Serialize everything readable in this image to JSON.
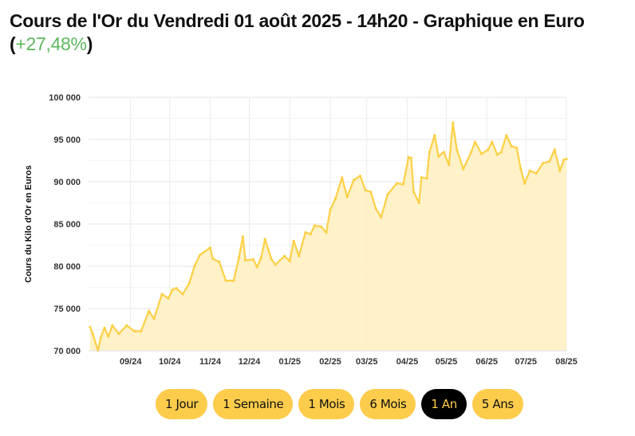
{
  "header": {
    "title": "Cours de l'Or du Vendredi 01 août 2025 - 14h20 - Graphique en Euro",
    "change_open": "(",
    "change": "+27,48%",
    "change_close": ")"
  },
  "colors": {
    "line": "#fdd045",
    "fill": "#fff0c2",
    "change": "#5cb85c",
    "button": "#fdcc4b",
    "active_button": "#000000"
  },
  "range_buttons": [
    {
      "label": "1 Jour",
      "active": false
    },
    {
      "label": "1 Semaine",
      "active": false
    },
    {
      "label": "1 Mois",
      "active": false
    },
    {
      "label": "6 Mois",
      "active": false
    },
    {
      "label": "1 An",
      "active": true
    },
    {
      "label": "5 Ans",
      "active": false
    }
  ],
  "chart_data": {
    "type": "area",
    "title": "",
    "xlabel": "",
    "ylabel": "Cours du Kilo d'Or en Euros",
    "ylim": [
      70000,
      100000
    ],
    "xlim": [
      "2024-08-01",
      "2025-08-01"
    ],
    "grid": true,
    "yticks": [
      70000,
      75000,
      80000,
      85000,
      90000,
      95000,
      100000
    ],
    "ytick_labels": [
      "70 000",
      "75 000",
      "80 000",
      "85 000",
      "90 000",
      "95 000",
      "100 000"
    ],
    "xticks": [
      "2024-09-01",
      "2024-10-01",
      "2024-11-01",
      "2024-12-01",
      "2025-01-01",
      "2025-02-01",
      "2025-03-01",
      "2025-04-01",
      "2025-05-01",
      "2025-06-01",
      "2025-07-01",
      "2025-08-01"
    ],
    "xtick_labels": [
      "09/24",
      "10/24",
      "11/24",
      "12/24",
      "01/25",
      "02/25",
      "03/25",
      "04/25",
      "05/25",
      "06/25",
      "07/25",
      "08/25"
    ],
    "x": [
      "2024-08-01",
      "2024-08-03",
      "2024-08-07",
      "2024-08-09",
      "2024-08-12",
      "2024-08-15",
      "2024-08-18",
      "2024-08-23",
      "2024-08-29",
      "2024-09-04",
      "2024-09-09",
      "2024-09-15",
      "2024-09-19",
      "2024-09-25",
      "2024-09-30",
      "2024-10-03",
      "2024-10-06",
      "2024-10-11",
      "2024-10-16",
      "2024-10-20",
      "2024-10-24",
      "2024-11-01",
      "2024-11-03",
      "2024-11-08",
      "2024-11-13",
      "2024-11-19",
      "2024-11-23",
      "2024-11-26",
      "2024-11-28",
      "2024-12-04",
      "2024-12-07",
      "2024-12-10",
      "2024-12-13",
      "2024-12-18",
      "2024-12-21",
      "2024-12-28",
      "2025-01-01",
      "2025-01-04",
      "2025-01-08",
      "2025-01-13",
      "2025-01-17",
      "2025-01-20",
      "2025-01-25",
      "2025-01-29",
      "2025-02-01",
      "2025-02-05",
      "2025-02-10",
      "2025-02-14",
      "2025-02-19",
      "2025-02-24",
      "2025-02-28",
      "2025-03-04",
      "2025-03-08",
      "2025-03-12",
      "2025-03-17",
      "2025-03-24",
      "2025-03-29",
      "2025-04-02",
      "2025-04-04",
      "2025-04-06",
      "2025-04-10",
      "2025-04-12",
      "2025-04-16",
      "2025-04-18",
      "2025-04-22",
      "2025-04-25",
      "2025-04-29",
      "2025-05-03",
      "2025-05-06",
      "2025-05-09",
      "2025-05-14",
      "2025-05-20",
      "2025-05-23",
      "2025-05-28",
      "2025-06-02",
      "2025-06-05",
      "2025-06-09",
      "2025-06-12",
      "2025-06-16",
      "2025-06-20",
      "2025-06-24",
      "2025-06-27",
      "2025-06-30",
      "2025-07-04",
      "2025-07-09",
      "2025-07-14",
      "2025-07-19",
      "2025-07-23",
      "2025-07-27",
      "2025-07-30",
      "2025-08-01"
    ],
    "values": [
      72800,
      72000,
      70000,
      71500,
      72700,
      71700,
      73000,
      72000,
      73000,
      72300,
      72300,
      74700,
      73800,
      76700,
      76200,
      77200,
      77400,
      76700,
      78000,
      80000,
      81300,
      82200,
      80900,
      80500,
      78300,
      78300,
      81000,
      83500,
      80700,
      80800,
      79900,
      81000,
      83200,
      80800,
      80200,
      81200,
      80600,
      83000,
      81200,
      84000,
      83800,
      84800,
      84700,
      84000,
      86700,
      88000,
      90500,
      88200,
      90200,
      90700,
      89000,
      88800,
      86800,
      85800,
      88500,
      89800,
      89700,
      92900,
      92800,
      88800,
      87500,
      90500,
      90400,
      93500,
      95500,
      93000,
      93500,
      92000,
      97000,
      93800,
      91500,
      93500,
      94700,
      93300,
      93800,
      94700,
      93200,
      93500,
      95500,
      94200,
      94000,
      91500,
      89800,
      91300,
      91000,
      92200,
      92400,
      93800,
      91300,
      92600,
      92700
    ]
  }
}
